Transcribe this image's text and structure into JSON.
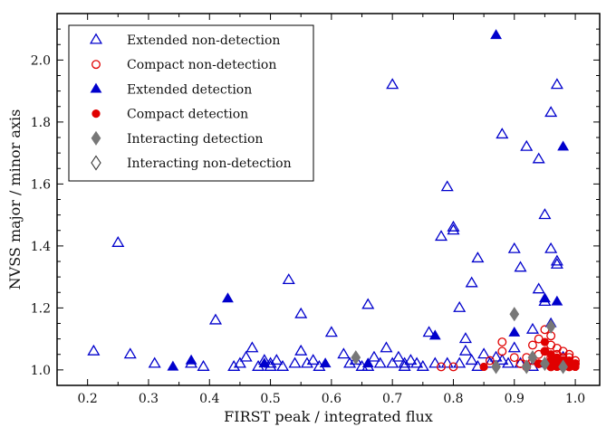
{
  "chart_data": {
    "type": "scatter",
    "xlabel": "FIRST peak / integrated flux",
    "ylabel": "NVSS major / minor axis",
    "xlim": [
      0.15,
      1.04
    ],
    "ylim": [
      0.95,
      2.15
    ],
    "xticks": [
      0.2,
      0.3,
      0.4,
      0.5,
      0.6,
      0.7,
      0.8,
      0.9,
      1.0
    ],
    "yticks": [
      1.0,
      1.2,
      1.4,
      1.6,
      1.8,
      2.0
    ],
    "xtick_labels": [
      "0.2",
      "0.3",
      "0.4",
      "0.5",
      "0.6",
      "0.7",
      "0.8",
      "0.9",
      "1.0"
    ],
    "ytick_labels": [
      "1.0",
      "1.2",
      "1.4",
      "1.6",
      "1.8",
      "2.0"
    ],
    "grid": false,
    "legend_position": "top-left",
    "series": [
      {
        "name": "Extended non-detection",
        "marker": "triangle-open",
        "color": "#0000cc",
        "points": [
          [
            0.21,
            1.06
          ],
          [
            0.25,
            1.41
          ],
          [
            0.27,
            1.05
          ],
          [
            0.31,
            1.02
          ],
          [
            0.37,
            1.02
          ],
          [
            0.39,
            1.01
          ],
          [
            0.41,
            1.16
          ],
          [
            0.44,
            1.01
          ],
          [
            0.45,
            1.02
          ],
          [
            0.46,
            1.04
          ],
          [
            0.47,
            1.07
          ],
          [
            0.48,
            1.01
          ],
          [
            0.49,
            1.03
          ],
          [
            0.5,
            1.02
          ],
          [
            0.51,
            1.03
          ],
          [
            0.52,
            1.01
          ],
          [
            0.53,
            1.29
          ],
          [
            0.54,
            1.02
          ],
          [
            0.55,
            1.18
          ],
          [
            0.55,
            1.06
          ],
          [
            0.56,
            1.02
          ],
          [
            0.57,
            1.03
          ],
          [
            0.58,
            1.01
          ],
          [
            0.6,
            1.12
          ],
          [
            0.62,
            1.05
          ],
          [
            0.63,
            1.02
          ],
          [
            0.64,
            1.03
          ],
          [
            0.65,
            1.01
          ],
          [
            0.66,
            1.21
          ],
          [
            0.67,
            1.04
          ],
          [
            0.68,
            1.02
          ],
          [
            0.69,
            1.07
          ],
          [
            0.7,
            1.02
          ],
          [
            0.7,
            1.92
          ],
          [
            0.71,
            1.04
          ],
          [
            0.72,
            1.01
          ],
          [
            0.73,
            1.03
          ],
          [
            0.74,
            1.02
          ],
          [
            0.75,
            1.01
          ],
          [
            0.76,
            1.12
          ],
          [
            0.77,
            1.02
          ],
          [
            0.78,
            1.43
          ],
          [
            0.79,
            1.02
          ],
          [
            0.79,
            1.59
          ],
          [
            0.8,
            1.46
          ],
          [
            0.8,
            1.45
          ],
          [
            0.81,
            1.2
          ],
          [
            0.81,
            1.02
          ],
          [
            0.82,
            1.1
          ],
          [
            0.82,
            1.06
          ],
          [
            0.83,
            1.03
          ],
          [
            0.83,
            1.28
          ],
          [
            0.84,
            1.36
          ],
          [
            0.84,
            1.01
          ],
          [
            0.85,
            1.05
          ],
          [
            0.86,
            1.02
          ],
          [
            0.87,
            1.04
          ],
          [
            0.88,
            1.76
          ],
          [
            0.89,
            1.02
          ],
          [
            0.9,
            1.07
          ],
          [
            0.9,
            1.39
          ],
          [
            0.91,
            1.33
          ],
          [
            0.91,
            1.02
          ],
          [
            0.92,
            1.72
          ],
          [
            0.93,
            1.13
          ],
          [
            0.94,
            1.26
          ],
          [
            0.94,
            1.68
          ],
          [
            0.95,
            1.5
          ],
          [
            0.95,
            1.22
          ],
          [
            0.96,
            1.39
          ],
          [
            0.96,
            1.83
          ],
          [
            0.97,
            1.92
          ],
          [
            0.97,
            1.35
          ],
          [
            0.97,
            1.34
          ],
          [
            0.98,
            1.04
          ],
          [
            0.93,
            1.01
          ],
          [
            0.88,
            1.03
          ],
          [
            0.72,
            1.02
          ],
          [
            0.66,
            1.01
          ],
          [
            0.5,
            1.01
          ]
        ]
      },
      {
        "name": "Compact non-detection",
        "marker": "circle-open",
        "color": "#e00000",
        "points": [
          [
            0.78,
            1.01
          ],
          [
            0.8,
            1.01
          ],
          [
            0.86,
            1.03
          ],
          [
            0.88,
            1.06
          ],
          [
            0.88,
            1.09
          ],
          [
            0.9,
            1.04
          ],
          [
            0.91,
            1.02
          ],
          [
            0.92,
            1.01
          ],
          [
            0.93,
            1.08
          ],
          [
            0.93,
            1.03
          ],
          [
            0.94,
            1.05
          ],
          [
            0.94,
            1.1
          ],
          [
            0.95,
            1.02
          ],
          [
            0.95,
            1.13
          ],
          [
            0.95,
            1.06
          ],
          [
            0.96,
            1.04
          ],
          [
            0.96,
            1.01
          ],
          [
            0.96,
            1.08
          ],
          [
            0.97,
            1.03
          ],
          [
            0.97,
            1.05
          ],
          [
            0.97,
            1.02
          ],
          [
            0.98,
            1.04
          ],
          [
            0.98,
            1.06
          ],
          [
            0.98,
            1.01
          ],
          [
            0.98,
            1.03
          ],
          [
            0.99,
            1.02
          ],
          [
            0.99,
            1.04
          ],
          [
            0.99,
            1.01
          ],
          [
            1.0,
            1.02
          ],
          [
            1.0,
            1.03
          ],
          [
            0.99,
            1.05
          ],
          [
            0.97,
            1.07
          ],
          [
            0.96,
            1.11
          ],
          [
            0.94,
            1.02
          ],
          [
            0.92,
            1.04
          ]
        ]
      },
      {
        "name": "Extended detection",
        "marker": "triangle-filled",
        "color": "#0000cc",
        "points": [
          [
            0.34,
            1.01
          ],
          [
            0.37,
            1.03
          ],
          [
            0.43,
            1.23
          ],
          [
            0.49,
            1.02
          ],
          [
            0.59,
            1.02
          ],
          [
            0.66,
            1.02
          ],
          [
            0.77,
            1.11
          ],
          [
            0.87,
            2.08
          ],
          [
            0.9,
            1.12
          ],
          [
            0.95,
            1.23
          ],
          [
            0.96,
            1.15
          ],
          [
            0.97,
            1.22
          ],
          [
            0.98,
            1.72
          ],
          [
            0.95,
            1.02
          ]
        ]
      },
      {
        "name": "Compact detection",
        "marker": "circle-filled",
        "color": "#e00000",
        "points": [
          [
            0.85,
            1.01
          ],
          [
            0.95,
            1.09
          ],
          [
            0.95,
            1.06
          ],
          [
            0.96,
            1.03
          ],
          [
            0.96,
            1.01
          ],
          [
            0.97,
            1.02
          ],
          [
            0.97,
            1.04
          ],
          [
            0.98,
            1.01
          ],
          [
            0.98,
            1.03
          ],
          [
            0.98,
            1.02
          ],
          [
            0.99,
            1.01
          ],
          [
            0.99,
            1.03
          ],
          [
            0.99,
            1.02
          ],
          [
            1.0,
            1.02
          ],
          [
            1.0,
            1.01
          ],
          [
            0.97,
            1.01
          ],
          [
            0.96,
            1.05
          ],
          [
            0.94,
            1.02
          ]
        ]
      },
      {
        "name": "Interacting detection",
        "marker": "diamond-filled",
        "color": "#777777",
        "points": [
          [
            0.64,
            1.04
          ],
          [
            0.87,
            1.01
          ],
          [
            0.9,
            1.18
          ],
          [
            0.92,
            1.01
          ],
          [
            0.93,
            1.04
          ],
          [
            0.95,
            1.02
          ],
          [
            0.96,
            1.14
          ],
          [
            0.98,
            1.01
          ]
        ]
      },
      {
        "name": "Interacting non-detection",
        "marker": "diamond-open",
        "color": "#333333",
        "points": []
      }
    ]
  }
}
